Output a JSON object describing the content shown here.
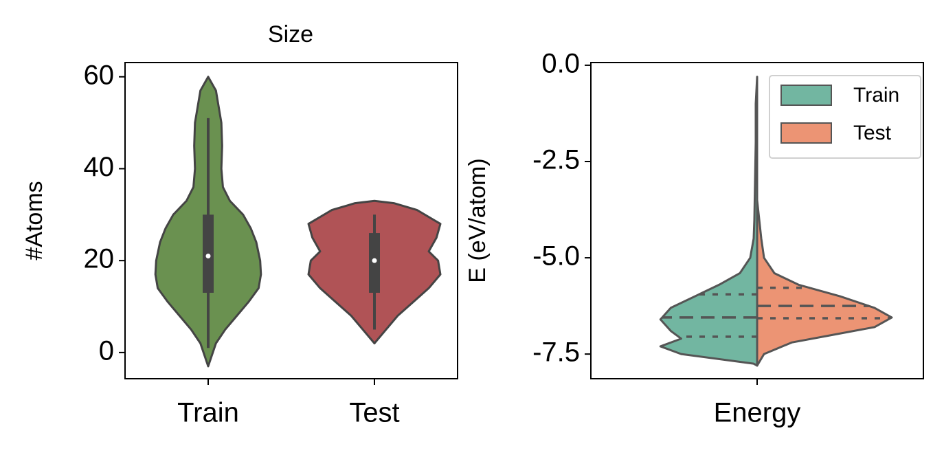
{
  "chart_data": [
    {
      "type": "violin",
      "title": "Size",
      "ylabel": "#Atoms",
      "categories": [
        "Train",
        "Test"
      ],
      "ylim": [
        -5.7,
        63.1
      ],
      "yticks": [
        0,
        20,
        40,
        60
      ],
      "violins": [
        {
          "color": "#6a9150",
          "y": [
            -3,
            0,
            2,
            5,
            8,
            11,
            14,
            17,
            20,
            24,
            27,
            30,
            33,
            36,
            40,
            45,
            50,
            57,
            60
          ],
          "density": [
            0,
            6,
            10,
            22,
            37,
            52,
            65,
            68,
            67,
            62,
            55,
            45,
            28,
            19,
            17,
            18,
            17,
            10,
            0
          ],
          "whisker": [
            1,
            51
          ],
          "box": [
            13,
            30
          ],
          "median": 21
        },
        {
          "color": "#b05356",
          "y": [
            2,
            5,
            8,
            11,
            14,
            17,
            20,
            22,
            25,
            28,
            31,
            32.5,
            33
          ],
          "density": [
            0,
            15,
            30,
            50,
            70,
            85,
            82,
            70,
            80,
            85,
            55,
            25,
            0
          ],
          "whisker": [
            5,
            30
          ],
          "box": [
            13,
            26
          ],
          "median": 20
        }
      ]
    },
    {
      "type": "split_violin",
      "ylabel": "E (eV/atom)",
      "categories": [
        "Energy"
      ],
      "legend": "upper right",
      "ylim": [
        -8.14,
        0.07
      ],
      "yticks": [
        {
          "value": 0,
          "label": "0.0"
        },
        {
          "value": -2.5,
          "label": "-2.5"
        },
        {
          "value": -5,
          "label": "-5.0"
        },
        {
          "value": -7.5,
          "label": "-7.5"
        }
      ],
      "series": [
        {
          "name": "Train",
          "color": "#72b6a1",
          "side": "left",
          "y": [
            -7.8,
            -7.75,
            -7.5,
            -7.3,
            -7.1,
            -6.9,
            -6.6,
            -6.3,
            -6.0,
            -5.7,
            -5.4,
            -5.0,
            -4.5,
            -4,
            -3,
            -2,
            -1,
            -0.3
          ],
          "density": [
            0,
            5,
            110,
            140,
            110,
            125,
            140,
            125,
            90,
            55,
            25,
            10,
            5,
            4,
            3,
            2,
            2,
            0
          ],
          "quartiles": [
            -7.05,
            -6.55,
            -5.95
          ]
        },
        {
          "name": "Test",
          "color": "#ec9474",
          "side": "right",
          "y": [
            -7.8,
            -7.5,
            -7.2,
            -7.0,
            -6.8,
            -6.55,
            -6.3,
            -6.0,
            -5.7,
            -5.4,
            -5.0,
            -4.5,
            -4.0,
            -3.5
          ],
          "density": [
            0,
            10,
            50,
            110,
            170,
            195,
            170,
            120,
            60,
            25,
            10,
            6,
            3,
            0
          ],
          "quartiles": [
            -6.57,
            -6.25,
            -5.78
          ]
        }
      ]
    }
  ]
}
